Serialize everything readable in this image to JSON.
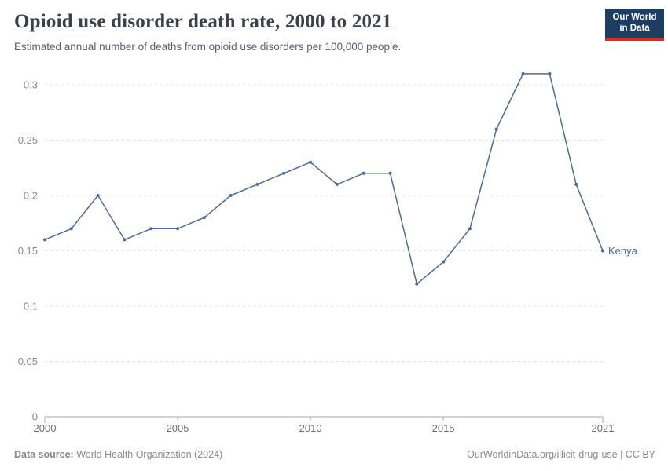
{
  "header": {
    "title": "Opioid use disorder death rate, 2000 to 2021",
    "subtitle": "Estimated annual number of deaths from opioid use disorders per 100,000 people."
  },
  "logo": {
    "line1": "Our World",
    "line2": "in Data",
    "bg_color": "#1d3d63",
    "bar_color": "#c9342a"
  },
  "chart_data": {
    "type": "line",
    "title": "Opioid use disorder death rate, 2000 to 2021",
    "subtitle": "Estimated annual number of deaths from opioid use disorders per 100,000 people.",
    "xlabel": "",
    "ylabel": "",
    "x": [
      2000,
      2001,
      2002,
      2003,
      2004,
      2005,
      2006,
      2007,
      2008,
      2009,
      2010,
      2011,
      2012,
      2013,
      2014,
      2015,
      2016,
      2017,
      2018,
      2019,
      2020,
      2021
    ],
    "series": [
      {
        "name": "Kenya",
        "color": "#4c6a9c",
        "values": [
          0.16,
          0.17,
          0.2,
          0.16,
          0.17,
          0.17,
          0.18,
          0.2,
          0.21,
          0.22,
          0.23,
          0.21,
          0.22,
          0.22,
          0.12,
          0.14,
          0.17,
          0.26,
          0.31,
          0.31,
          0.21,
          0.15
        ]
      }
    ],
    "end_label": "Kenya",
    "ylim": [
      0,
      0.32
    ],
    "yticks": [
      0,
      0.05,
      0.1,
      0.15,
      0.2,
      0.25,
      0.3
    ],
    "ytick_labels": [
      "0",
      "0.05",
      "0.1",
      "0.15",
      "0.2",
      "0.25",
      "0.3"
    ],
    "xticks": [
      2000,
      2005,
      2010,
      2015,
      2021
    ],
    "xtick_labels": [
      "2000",
      "2005",
      "2010",
      "2015",
      "2021"
    ],
    "grid": "horizontal-dashed",
    "legend_position": "end-of-line",
    "marker": "dot"
  },
  "footer": {
    "source_label": "Data source:",
    "source_text": "World Health Organization (2024)",
    "link_text": "OurWorldinData.org/illicit-drug-use | CC BY"
  },
  "colors": {
    "line": "#4c6a9c",
    "grid": "#e0e0e0",
    "axis": "#a8a8a8",
    "y_tick_label": "#8a8a8a",
    "x_tick_label": "#6e6e6e",
    "title_text": "#3a414a",
    "subtitle_text": "#5b6169",
    "footer_text": "#8a8a8a"
  }
}
